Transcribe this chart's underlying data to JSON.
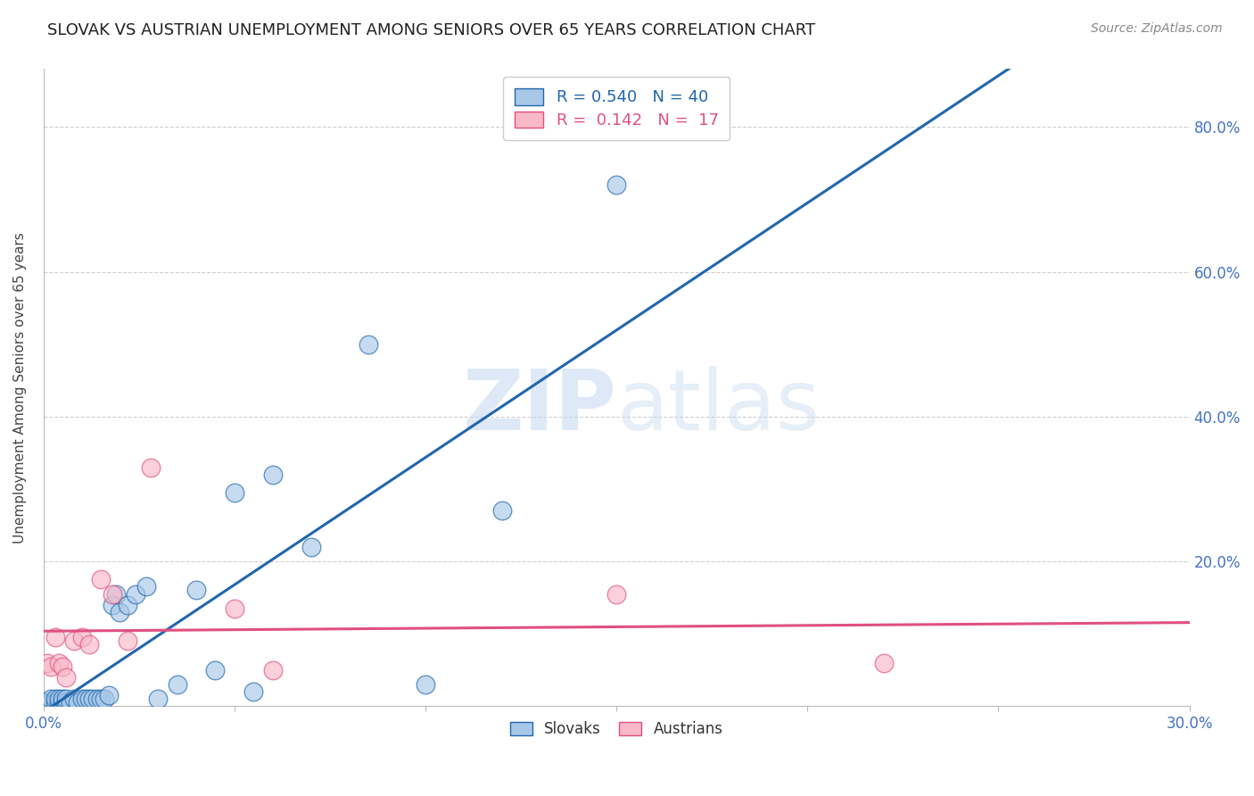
{
  "title": "SLOVAK VS AUSTRIAN UNEMPLOYMENT AMONG SENIORS OVER 65 YEARS CORRELATION CHART",
  "source": "Source: ZipAtlas.com",
  "ylabel": "Unemployment Among Seniors over 65 years",
  "yticks": [
    0.0,
    0.2,
    0.4,
    0.6,
    0.8
  ],
  "ytick_labels": [
    "",
    "20.0%",
    "40.0%",
    "60.0%",
    "80.0%"
  ],
  "legend_slovak_R": "0.540",
  "legend_slovak_N": "40",
  "legend_austrian_R": "0.142",
  "legend_austrian_N": "17",
  "legend_labels": [
    "Slovaks",
    "Austrians"
  ],
  "slovak_color": "#a8c8e8",
  "austrian_color": "#f9b8c8",
  "trendline_slovak_color": "#2166ac",
  "trendline_austrian_color": "#e05080",
  "watermark_zip": "ZIP",
  "watermark_atlas": "atlas",
  "slovak_x": [
    0.001,
    0.002,
    0.002,
    0.003,
    0.003,
    0.004,
    0.004,
    0.005,
    0.005,
    0.006,
    0.006,
    0.007,
    0.008,
    0.009,
    0.01,
    0.011,
    0.012,
    0.013,
    0.014,
    0.015,
    0.016,
    0.017,
    0.018,
    0.019,
    0.02,
    0.022,
    0.024,
    0.027,
    0.03,
    0.035,
    0.04,
    0.045,
    0.05,
    0.055,
    0.06,
    0.07,
    0.085,
    0.1,
    0.12,
    0.15
  ],
  "slovak_y": [
    0.005,
    0.005,
    0.01,
    0.005,
    0.01,
    0.005,
    0.01,
    0.005,
    0.01,
    0.005,
    0.01,
    0.005,
    0.01,
    0.005,
    0.01,
    0.01,
    0.01,
    0.01,
    0.01,
    0.01,
    0.01,
    0.015,
    0.14,
    0.155,
    0.13,
    0.14,
    0.155,
    0.165,
    0.01,
    0.03,
    0.16,
    0.05,
    0.295,
    0.02,
    0.32,
    0.22,
    0.5,
    0.03,
    0.27,
    0.72
  ],
  "austrian_x": [
    0.001,
    0.002,
    0.003,
    0.004,
    0.005,
    0.006,
    0.008,
    0.01,
    0.012,
    0.015,
    0.018,
    0.022,
    0.028,
    0.05,
    0.06,
    0.15,
    0.22
  ],
  "austrian_y": [
    0.06,
    0.055,
    0.095,
    0.06,
    0.055,
    0.04,
    0.09,
    0.095,
    0.085,
    0.175,
    0.155,
    0.09,
    0.33,
    0.135,
    0.05,
    0.155,
    0.06
  ],
  "xlim": [
    0.0,
    0.3
  ],
  "ylim": [
    0.0,
    0.88
  ],
  "xticks": [
    0.0,
    0.05,
    0.1,
    0.15,
    0.2,
    0.25,
    0.3
  ],
  "background_color": "#ffffff",
  "grid_color": "#d0d0d0",
  "tick_label_color": "#4472c4",
  "title_fontsize": 13,
  "source_fontsize": 10
}
